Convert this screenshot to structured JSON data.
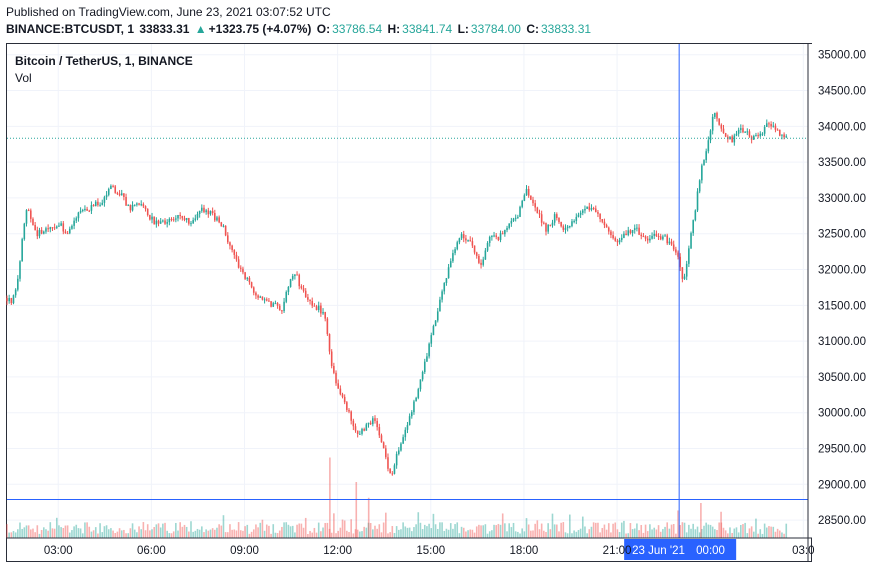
{
  "header": {
    "published": "Published on TradingView.com, June 23, 2021 03:07:52 UTC"
  },
  "quote": {
    "symbol": "BINANCE:BTCUSDT, 1",
    "last": "33833.31",
    "arrow": "▲",
    "change": "+1323.75 (+4.07%)",
    "o_label": "O:",
    "o_value": "33786.54",
    "h_label": "H:",
    "h_value": "33841.74",
    "l_label": "L:",
    "l_value": "33784.00",
    "c_label": "C:",
    "c_value": "33833.31"
  },
  "legend": {
    "title": "Bitcoin / TetherUS, 1, BINANCE",
    "vol": "Vol"
  },
  "colors": {
    "up": "#26a69a",
    "down": "#ef5350",
    "crosshair": "#2962ff",
    "price_line": "#26a69a",
    "grid": "#f0f3fa"
  },
  "chart_data": {
    "type": "candlestick",
    "title": "Bitcoin / TetherUS, 1, BINANCE",
    "x_unit": "hours since 2021-06-22 00:00 UTC",
    "xlim": [
      1.35,
      27.15
    ],
    "ylim": [
      28250,
      35150
    ],
    "grid": true,
    "x_ticks": [
      {
        "x": 3,
        "label": "03:00"
      },
      {
        "x": 6,
        "label": "06:00"
      },
      {
        "x": 9,
        "label": "09:00"
      },
      {
        "x": 12,
        "label": "12:00"
      },
      {
        "x": 15,
        "label": "15:00"
      },
      {
        "x": 18,
        "label": "18:00"
      },
      {
        "x": 21,
        "label": "21:00"
      },
      {
        "x": 27,
        "label": "03:0"
      }
    ],
    "y_ticks": [
      28500,
      29000,
      29500,
      30000,
      30500,
      31000,
      31500,
      32000,
      32500,
      33000,
      33500,
      34000,
      34500,
      35000
    ],
    "y_tick_labels": [
      "28500.00",
      "29000.00",
      "29500.00",
      "30000.00",
      "30500.00",
      "31000.00",
      "31500.00",
      "32000.00",
      "32500.00",
      "33000.00",
      "33500.00",
      "34000.00",
      "34500.00",
      "35000.00"
    ],
    "price_path": [
      [
        1.35,
        31600
      ],
      [
        1.5,
        31550
      ],
      [
        1.7,
        31850
      ],
      [
        1.85,
        32500
      ],
      [
        2.0,
        32900
      ],
      [
        2.3,
        32500
      ],
      [
        2.7,
        32550
      ],
      [
        3.0,
        32650
      ],
      [
        3.3,
        32500
      ],
      [
        3.6,
        32750
      ],
      [
        4.0,
        32850
      ],
      [
        4.4,
        32950
      ],
      [
        4.7,
        33150
      ],
      [
        5.0,
        33050
      ],
      [
        5.3,
        32850
      ],
      [
        5.7,
        32900
      ],
      [
        6.1,
        32650
      ],
      [
        6.5,
        32650
      ],
      [
        6.9,
        32750
      ],
      [
        7.3,
        32650
      ],
      [
        7.6,
        32850
      ],
      [
        8.0,
        32750
      ],
      [
        8.3,
        32600
      ],
      [
        8.6,
        32250
      ],
      [
        9.0,
        31900
      ],
      [
        9.3,
        31700
      ],
      [
        9.7,
        31550
      ],
      [
        10.0,
        31500
      ],
      [
        10.2,
        31450
      ],
      [
        10.4,
        31750
      ],
      [
        10.6,
        32000
      ],
      [
        10.8,
        31750
      ],
      [
        11.1,
        31550
      ],
      [
        11.4,
        31450
      ],
      [
        11.6,
        31350
      ],
      [
        11.8,
        30700
      ],
      [
        12.0,
        30350
      ],
      [
        12.3,
        30050
      ],
      [
        12.6,
        29700
      ],
      [
        12.9,
        29800
      ],
      [
        13.2,
        29900
      ],
      [
        13.5,
        29450
      ],
      [
        13.7,
        29100
      ],
      [
        13.9,
        29400
      ],
      [
        14.2,
        29750
      ],
      [
        14.5,
        30200
      ],
      [
        14.8,
        30700
      ],
      [
        15.1,
        31200
      ],
      [
        15.4,
        31750
      ],
      [
        15.7,
        32200
      ],
      [
        16.0,
        32500
      ],
      [
        16.3,
        32350
      ],
      [
        16.6,
        32050
      ],
      [
        16.9,
        32450
      ],
      [
        17.2,
        32450
      ],
      [
        17.5,
        32600
      ],
      [
        17.8,
        32750
      ],
      [
        18.1,
        33100
      ],
      [
        18.4,
        32850
      ],
      [
        18.7,
        32550
      ],
      [
        19.0,
        32750
      ],
      [
        19.3,
        32550
      ],
      [
        19.6,
        32700
      ],
      [
        19.9,
        32800
      ],
      [
        20.2,
        32900
      ],
      [
        20.5,
        32700
      ],
      [
        20.8,
        32450
      ],
      [
        21.0,
        32350
      ],
      [
        21.3,
        32500
      ],
      [
        21.6,
        32600
      ],
      [
        21.9,
        32400
      ],
      [
        22.2,
        32500
      ],
      [
        22.5,
        32450
      ],
      [
        22.8,
        32350
      ],
      [
        23.0,
        32100
      ],
      [
        23.15,
        31800
      ],
      [
        23.3,
        32300
      ],
      [
        23.5,
        32800
      ],
      [
        23.7,
        33400
      ],
      [
        23.9,
        33700
      ],
      [
        24.1,
        34200
      ],
      [
        24.4,
        33900
      ],
      [
        24.7,
        33800
      ],
      [
        25.0,
        33950
      ],
      [
        25.3,
        33850
      ],
      [
        25.6,
        33900
      ],
      [
        25.9,
        34050
      ],
      [
        26.2,
        33900
      ],
      [
        26.45,
        33833
      ]
    ],
    "volume_spikes": [
      {
        "x": 11.75,
        "value": 230
      },
      {
        "x": 12.6,
        "value": 160
      },
      {
        "x": 13.0,
        "value": 115
      },
      {
        "x": 23.7,
        "value": 100
      },
      {
        "x": 24.35,
        "value": 75
      }
    ],
    "last_price": 33833.31,
    "last_price_label": "33833.31",
    "crosshair": {
      "x": 23.0,
      "y": 28787.03,
      "y_label": "28787.03",
      "x_label_date": "23 Jun '21",
      "x_label_time": "00:00"
    }
  }
}
